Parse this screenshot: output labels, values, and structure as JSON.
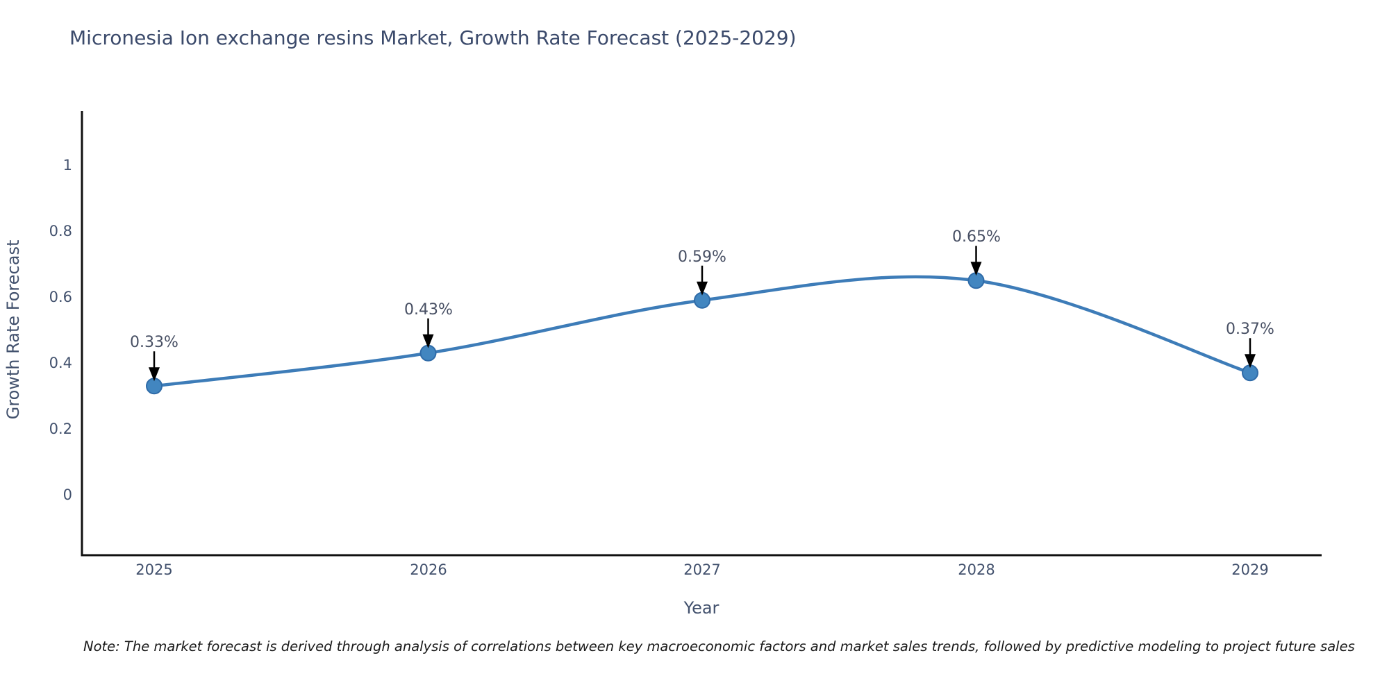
{
  "title": "Micronesia Ion exchange resins Market, Growth Rate Forecast (2025-2029)",
  "footnote": "Note: The market forecast is derived through analysis of correlations between key macroeconomic factors and market sales trends, followed by predictive modeling to project future sales",
  "chart_data": {
    "type": "line",
    "title": "Micronesia Ion exchange resins Market, Growth Rate Forecast (2025-2029)",
    "x": [
      2025,
      2026,
      2027,
      2028,
      2029
    ],
    "categories": [
      "2025",
      "2026",
      "2027",
      "2028",
      "2029"
    ],
    "series": [
      {
        "name": "Growth Rate Forecast",
        "values": [
          0.33,
          0.43,
          0.59,
          0.65,
          0.37
        ]
      }
    ],
    "point_labels": [
      "0.33%",
      "0.43%",
      "0.59%",
      "0.65%",
      "0.37%"
    ],
    "xlabel": "Year",
    "ylabel": "Growth Rate Forecast",
    "ytick_labels": [
      "0",
      "0.2",
      "0.4",
      "0.6",
      "0.8",
      "1"
    ],
    "yticks": [
      0,
      0.2,
      0.4,
      0.6,
      0.8,
      1
    ],
    "ylim": [
      -0.18,
      1.16
    ],
    "grid": false,
    "legend": "none",
    "line_style": "smooth-spline",
    "marker": "circle",
    "annotations": "value labels with downward black arrows above each point",
    "colors": {
      "line": "#3d7cb8",
      "marker_fill": "#4286c0",
      "marker_edge": "#2f6ba8",
      "arrow": "#000000",
      "axis_spine": "#111111",
      "tick_text": "#42516d",
      "title_text": "#3b4a6b",
      "note_text": "#1a1a1a",
      "background": "#ffffff"
    }
  }
}
